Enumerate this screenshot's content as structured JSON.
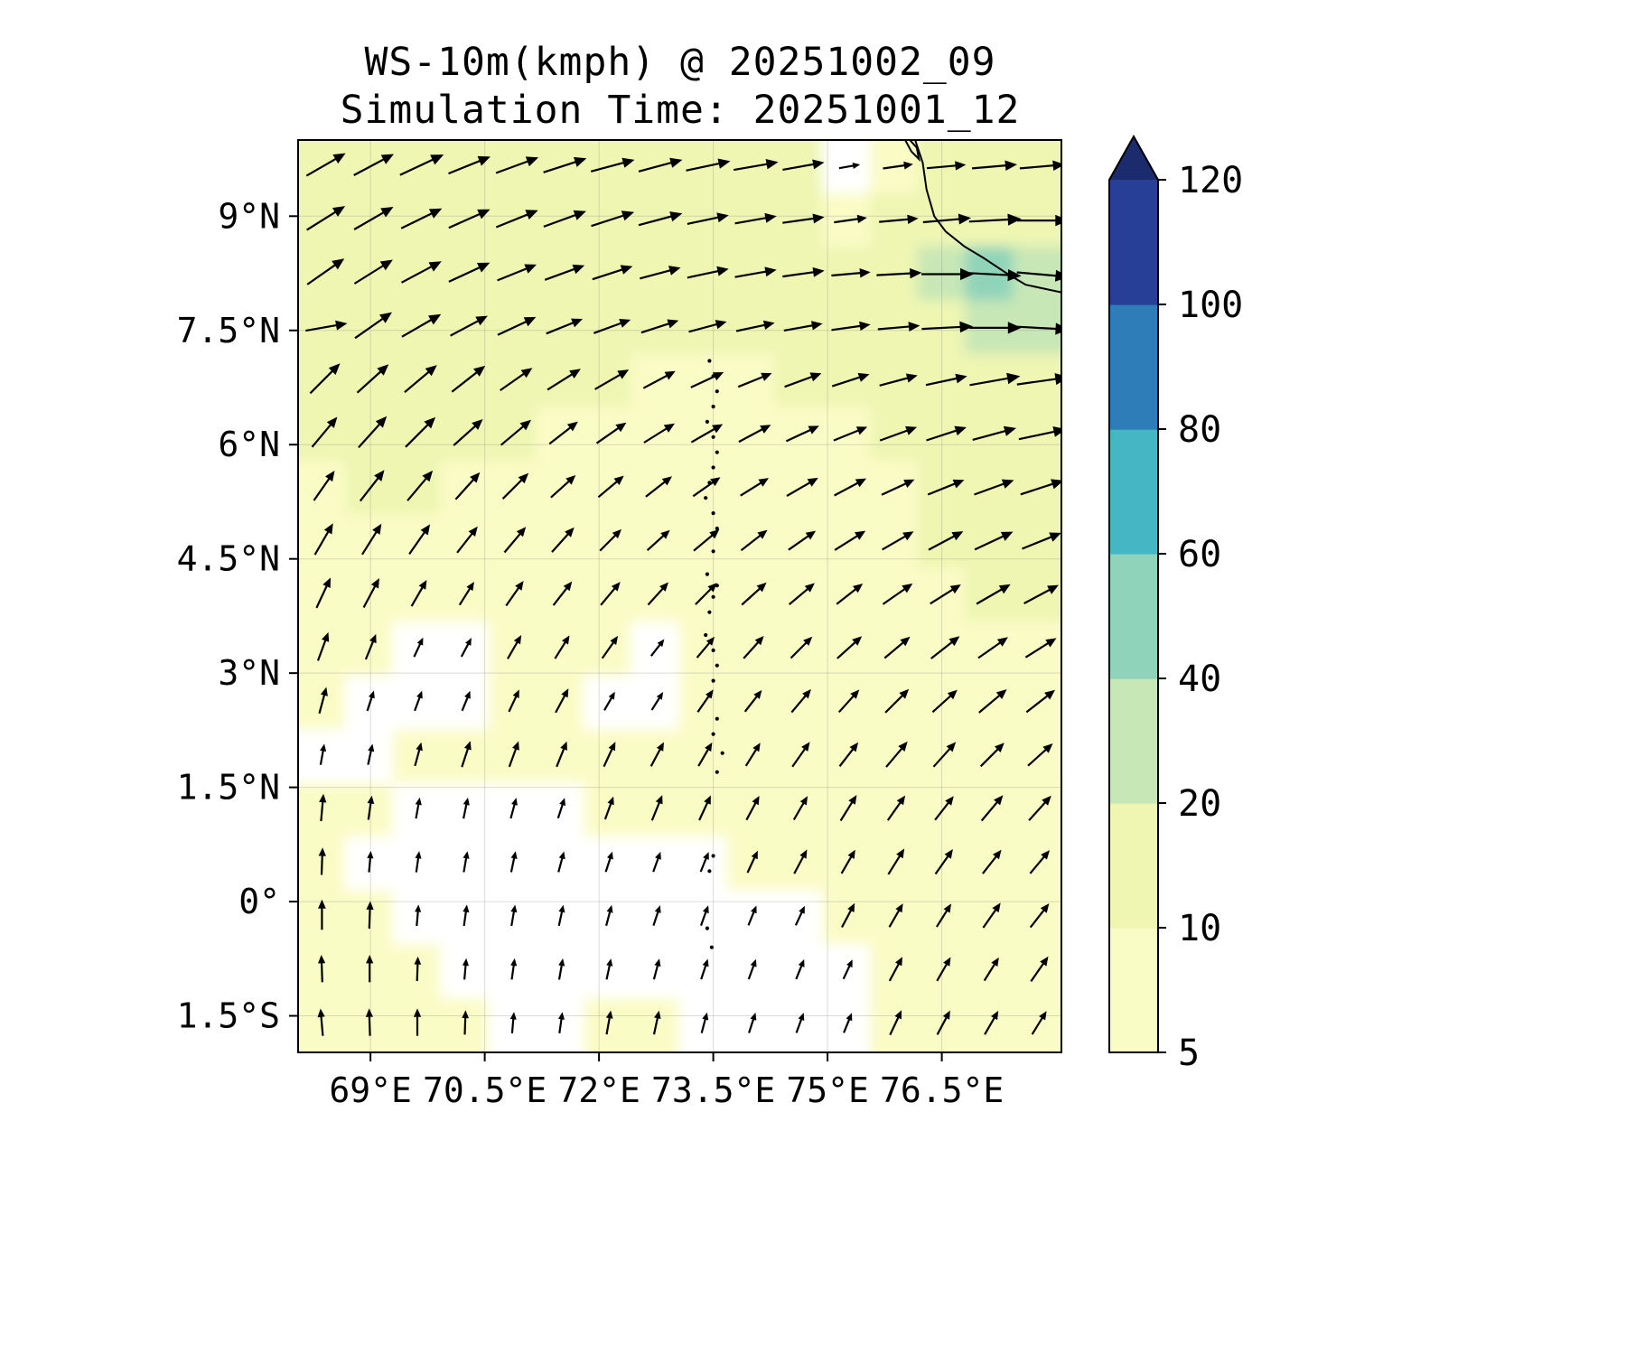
{
  "chart_data": {
    "type": "heatmap",
    "title": "WS-10m(kmph) @ 20251002_09",
    "subtitle": "Simulation Time: 20251001_12",
    "xlabel": "",
    "ylabel": "",
    "units": "kmph",
    "lon_range": [
      68.05,
      78.07
    ],
    "lat_range": [
      -1.98,
      10.0
    ],
    "x_ticks": [
      {
        "label": "69°E",
        "lon": 69.0
      },
      {
        "label": "70.5°E",
        "lon": 70.5
      },
      {
        "label": "72°E",
        "lon": 72.0
      },
      {
        "label": "73.5°E",
        "lon": 73.5
      },
      {
        "label": "75°E",
        "lon": 75.0
      },
      {
        "label": "76.5°E",
        "lon": 76.5
      }
    ],
    "y_ticks": [
      {
        "label": "9°N",
        "lat": 9.0
      },
      {
        "label": "7.5°N",
        "lat": 7.5
      },
      {
        "label": "6°N",
        "lat": 6.0
      },
      {
        "label": "4.5°N",
        "lat": 4.5
      },
      {
        "label": "3°N",
        "lat": 3.0
      },
      {
        "label": "1.5°N",
        "lat": 1.5
      },
      {
        "label": "0°",
        "lat": 0.0
      },
      {
        "label": "1.5°S",
        "lat": -1.5
      }
    ],
    "colorbar": {
      "levels": [
        5,
        10,
        20,
        40,
        60,
        80,
        100,
        120
      ],
      "tick_labels": [
        "5",
        "10",
        "20",
        "40",
        "60",
        "80",
        "100",
        "120"
      ],
      "band_colors": [
        "#fafcc6",
        "#eef6b2",
        "#c7e7b6",
        "#8fd4ba",
        "#44b6c4",
        "#2e7cb8",
        "#283f97"
      ],
      "extend_color": "#1c2a6e",
      "under_color": "#ffffff"
    },
    "grid": {
      "speed_kmph": [
        [
          12,
          12,
          13,
          12,
          12,
          12,
          12,
          12,
          12,
          12,
          11,
          4,
          7,
          10,
          12,
          12
        ],
        [
          12,
          12,
          12,
          12,
          12,
          12,
          12,
          12,
          11,
          11,
          11,
          8,
          10,
          13,
          16,
          14
        ],
        [
          12,
          12,
          12,
          12,
          11,
          11,
          11,
          11,
          11,
          11,
          11,
          10,
          12,
          26,
          45,
          20
        ],
        [
          11,
          12,
          12,
          11,
          11,
          10,
          10,
          10,
          10,
          10,
          10,
          10,
          11,
          14,
          38,
          24
        ],
        [
          11,
          11,
          11,
          11,
          10,
          10,
          10,
          9,
          9,
          9,
          10,
          10,
          10,
          11,
          14,
          16
        ],
        [
          10,
          11,
          11,
          10,
          10,
          9,
          9,
          9,
          9,
          9,
          9,
          9,
          10,
          11,
          12,
          13
        ],
        [
          9,
          10,
          10,
          9,
          9,
          8,
          8,
          8,
          8,
          8,
          9,
          9,
          9,
          10,
          11,
          12
        ],
        [
          9,
          9,
          9,
          8,
          8,
          8,
          7,
          7,
          8,
          8,
          8,
          9,
          9,
          10,
          11,
          11
        ],
        [
          8,
          8,
          7,
          6,
          7,
          7,
          7,
          7,
          7,
          8,
          8,
          8,
          9,
          9,
          10,
          10
        ],
        [
          7,
          6,
          4,
          4,
          6,
          6,
          6,
          4,
          6,
          7,
          7,
          8,
          8,
          9,
          9,
          9
        ],
        [
          6,
          4,
          4,
          4,
          5,
          6,
          4,
          4,
          6,
          6,
          7,
          7,
          8,
          8,
          9,
          9
        ],
        [
          4,
          4,
          5,
          6,
          6,
          6,
          6,
          6,
          6,
          6,
          7,
          7,
          8,
          8,
          8,
          8
        ],
        [
          6,
          5,
          4,
          4,
          4,
          4,
          5,
          6,
          6,
          6,
          6,
          7,
          7,
          7,
          8,
          8
        ],
        [
          6,
          4,
          4,
          4,
          4,
          4,
          4,
          4,
          4,
          5,
          6,
          6,
          7,
          7,
          7,
          7
        ],
        [
          7,
          6,
          4,
          4,
          4,
          4,
          4,
          4,
          4,
          4,
          4,
          6,
          6,
          6,
          7,
          7
        ],
        [
          6,
          6,
          5,
          4,
          4,
          4,
          4,
          4,
          4,
          4,
          4,
          4,
          6,
          6,
          6,
          7
        ],
        [
          6,
          6,
          6,
          5,
          4,
          4,
          5,
          5,
          4,
          4,
          4,
          4,
          6,
          6,
          6,
          6
        ]
      ],
      "direction_deg": [
        [
          30,
          28,
          25,
          22,
          20,
          18,
          15,
          15,
          12,
          10,
          10,
          10,
          8,
          5,
          5,
          5
        ],
        [
          32,
          30,
          26,
          24,
          22,
          20,
          18,
          15,
          12,
          10,
          8,
          8,
          5,
          5,
          3,
          0
        ],
        [
          35,
          32,
          28,
          25,
          22,
          20,
          18,
          15,
          12,
          10,
          8,
          5,
          3,
          0,
          -3,
          -5
        ],
        [
          10,
          35,
          30,
          28,
          25,
          22,
          20,
          18,
          15,
          12,
          10,
          8,
          5,
          3,
          0,
          -3
        ],
        [
          45,
          42,
          40,
          38,
          35,
          32,
          30,
          28,
          25,
          22,
          20,
          18,
          15,
          12,
          10,
          8
        ],
        [
          50,
          48,
          45,
          42,
          40,
          38,
          35,
          32,
          30,
          28,
          25,
          22,
          20,
          18,
          15,
          12
        ],
        [
          55,
          52,
          50,
          48,
          45,
          42,
          40,
          38,
          35,
          32,
          30,
          28,
          25,
          22,
          20,
          18
        ],
        [
          60,
          58,
          55,
          52,
          50,
          48,
          45,
          42,
          40,
          38,
          35,
          32,
          30,
          28,
          25,
          22
        ],
        [
          65,
          62,
          60,
          58,
          55,
          52,
          50,
          48,
          45,
          42,
          40,
          38,
          35,
          32,
          30,
          28
        ],
        [
          70,
          68,
          65,
          62,
          60,
          58,
          55,
          52,
          50,
          48,
          45,
          42,
          40,
          38,
          35,
          32
        ],
        [
          75,
          72,
          70,
          68,
          65,
          62,
          60,
          58,
          55,
          52,
          50,
          48,
          45,
          42,
          40,
          38
        ],
        [
          80,
          78,
          75,
          72,
          70,
          68,
          65,
          62,
          60,
          58,
          55,
          52,
          50,
          48,
          45,
          42
        ],
        [
          85,
          82,
          80,
          78,
          75,
          72,
          70,
          68,
          65,
          62,
          60,
          58,
          55,
          52,
          50,
          48
        ],
        [
          88,
          85,
          82,
          80,
          78,
          75,
          72,
          70,
          68,
          65,
          62,
          60,
          58,
          55,
          52,
          50
        ],
        [
          90,
          88,
          85,
          82,
          80,
          78,
          75,
          72,
          70,
          68,
          65,
          62,
          60,
          58,
          55,
          52
        ],
        [
          92,
          90,
          88,
          85,
          82,
          80,
          78,
          75,
          72,
          70,
          68,
          65,
          62,
          60,
          58,
          55
        ],
        [
          95,
          92,
          90,
          88,
          85,
          82,
          80,
          78,
          75,
          72,
          70,
          68,
          65,
          62,
          60,
          58
        ]
      ]
    },
    "islands": [
      [
        73.45,
        7.1
      ],
      [
        73.5,
        6.9
      ],
      [
        73.55,
        6.7
      ],
      [
        73.5,
        6.5
      ],
      [
        73.42,
        6.3
      ],
      [
        73.5,
        6.1
      ],
      [
        73.55,
        5.9
      ],
      [
        73.5,
        5.7
      ],
      [
        73.45,
        5.5
      ],
      [
        73.4,
        5.3
      ],
      [
        73.5,
        5.1
      ],
      [
        73.55,
        4.9
      ],
      [
        73.5,
        4.6
      ],
      [
        73.42,
        4.3
      ],
      [
        73.55,
        4.15
      ],
      [
        73.5,
        4.0
      ],
      [
        73.45,
        3.8
      ],
      [
        73.4,
        3.5
      ],
      [
        73.5,
        3.3
      ],
      [
        73.55,
        3.1
      ],
      [
        73.5,
        2.9
      ],
      [
        73.45,
        2.7
      ],
      [
        73.55,
        2.4
      ],
      [
        73.5,
        2.2
      ],
      [
        73.62,
        1.95
      ],
      [
        73.55,
        1.7
      ],
      [
        73.5,
        0.6
      ],
      [
        73.45,
        0.4
      ],
      [
        73.42,
        -0.35
      ],
      [
        73.48,
        -0.6
      ]
    ],
    "coastline": [
      [
        [
          76.15,
          10.0
        ],
        [
          76.25,
          9.7
        ],
        [
          76.3,
          9.35
        ],
        [
          76.4,
          9.0
        ],
        [
          76.55,
          8.8
        ],
        [
          76.8,
          8.6
        ],
        [
          77.05,
          8.45
        ],
        [
          77.35,
          8.25
        ],
        [
          77.6,
          8.1
        ],
        [
          78.07,
          8.0
        ]
      ],
      [
        [
          76.02,
          10.0
        ],
        [
          76.1,
          9.85
        ],
        [
          76.2,
          9.75
        ],
        [
          76.17,
          9.9
        ],
        [
          76.08,
          10.0
        ]
      ]
    ]
  }
}
